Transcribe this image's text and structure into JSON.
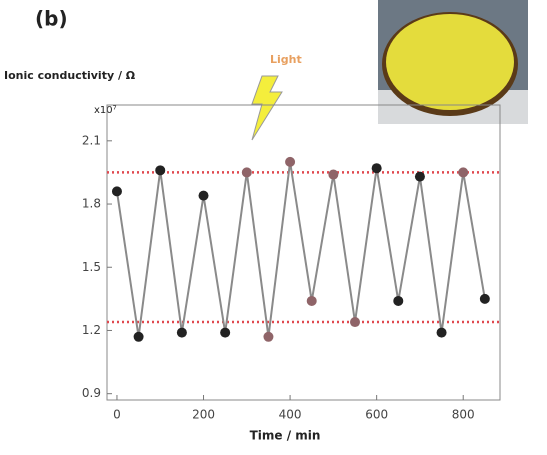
{
  "chart_data": {
    "type": "line",
    "panel_label": "(b)",
    "ylabel": "Ionic conductivity / Ω",
    "xlabel": "Time / min",
    "multiplier": "x10⁷",
    "annotation": "Light",
    "x": [
      0,
      50,
      100,
      150,
      200,
      250,
      300,
      350,
      400,
      450,
      500,
      550,
      600,
      650,
      700,
      750,
      800,
      850
    ],
    "series": [
      {
        "color": "#8a8a8a",
        "values": [
          1.86,
          1.17,
          1.96,
          1.19,
          1.84,
          1.19,
          1.95,
          1.17,
          2.0,
          1.34,
          1.94,
          1.24,
          1.97,
          1.34,
          1.93,
          1.19,
          1.95,
          1.35
        ],
        "marker_colors": [
          "#222",
          "#222",
          "#222",
          "#222",
          "#222",
          "#222",
          "#8f6468",
          "#8f6468",
          "#8f6468",
          "#8f6468",
          "#8f6468",
          "#8f6468",
          "#222",
          "#222",
          "#222",
          "#222",
          "#8f6468",
          "#222"
        ]
      }
    ],
    "reference_lines": [
      1.95,
      1.24
    ],
    "reference_color": "#e0484f",
    "xlim": [
      -23,
      885
    ],
    "ylim": [
      0.87,
      2.27
    ],
    "xticks": [
      0,
      200,
      400,
      600,
      800
    ],
    "yticks": [
      0.9,
      1.2,
      1.5,
      1.8,
      2.1
    ]
  }
}
